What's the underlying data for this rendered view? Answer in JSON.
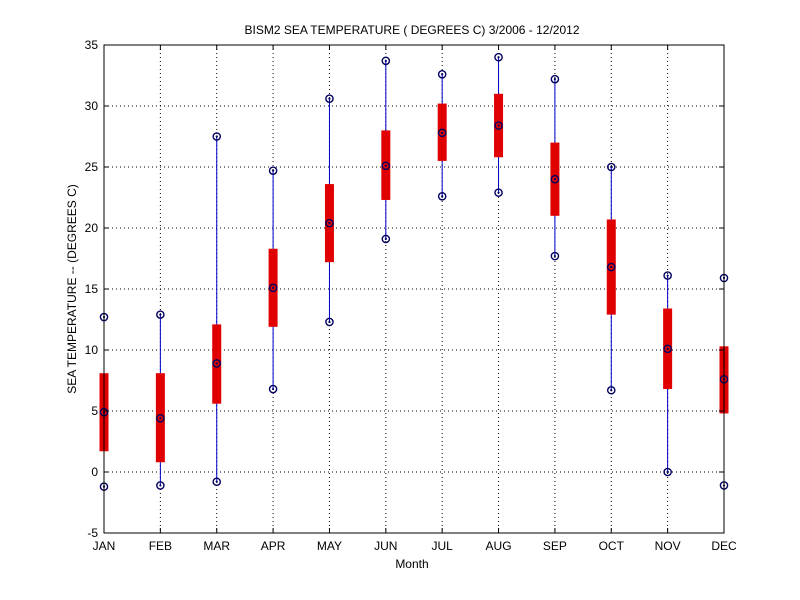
{
  "chart_data": {
    "type": "box",
    "title": "BISM2  SEA TEMPERATURE ( DEGREES C) 3/2006 - 12/2012",
    "xlabel": "Month",
    "ylabel": "SEA TEMPERATURE -- (DEGREES C)",
    "categories": [
      "JAN",
      "FEB",
      "MAR",
      "APR",
      "MAY",
      "JUN",
      "JUL",
      "AUG",
      "SEP",
      "OCT",
      "NOV",
      "DEC"
    ],
    "ylim": [
      -5,
      35
    ],
    "yticks": [
      -5,
      0,
      5,
      10,
      15,
      20,
      25,
      30,
      35
    ],
    "grid": true,
    "boxes": [
      {
        "category": "JAN",
        "min": -1.2,
        "q1": 1.7,
        "median": 4.9,
        "q3": 8.1,
        "max": 12.7
      },
      {
        "category": "FEB",
        "min": -1.1,
        "q1": 0.8,
        "median": 4.4,
        "q3": 8.1,
        "max": 12.9
      },
      {
        "category": "MAR",
        "min": -0.8,
        "q1": 5.6,
        "median": 8.9,
        "q3": 12.1,
        "max": 27.5
      },
      {
        "category": "APR",
        "min": 6.8,
        "q1": 11.9,
        "median": 15.1,
        "q3": 18.3,
        "max": 24.7
      },
      {
        "category": "MAY",
        "min": 12.3,
        "q1": 17.2,
        "median": 20.4,
        "q3": 23.6,
        "max": 30.6
      },
      {
        "category": "JUN",
        "min": 19.1,
        "q1": 22.3,
        "median": 25.1,
        "q3": 28.0,
        "max": 33.7
      },
      {
        "category": "JUL",
        "min": 22.6,
        "q1": 25.5,
        "median": 27.8,
        "q3": 30.2,
        "max": 32.6
      },
      {
        "category": "AUG",
        "min": 22.9,
        "q1": 25.8,
        "median": 28.4,
        "q3": 31.0,
        "max": 34.0
      },
      {
        "category": "SEP",
        "min": 17.7,
        "q1": 21.0,
        "median": 24.0,
        "q3": 27.0,
        "max": 32.2
      },
      {
        "category": "OCT",
        "min": 6.7,
        "q1": 12.9,
        "median": 16.8,
        "q3": 20.7,
        "max": 25.0
      },
      {
        "category": "NOV",
        "min": 0.0,
        "q1": 6.8,
        "median": 10.1,
        "q3": 13.4,
        "max": 16.1
      },
      {
        "category": "DEC",
        "min": -1.1,
        "q1": 4.8,
        "median": 7.6,
        "q3": 10.3,
        "max": 15.9
      }
    ],
    "colors": {
      "whisker": "#0000cc",
      "box": "#e00000",
      "marker": "#000060",
      "grid": "#000000",
      "axis": "#000000"
    }
  }
}
